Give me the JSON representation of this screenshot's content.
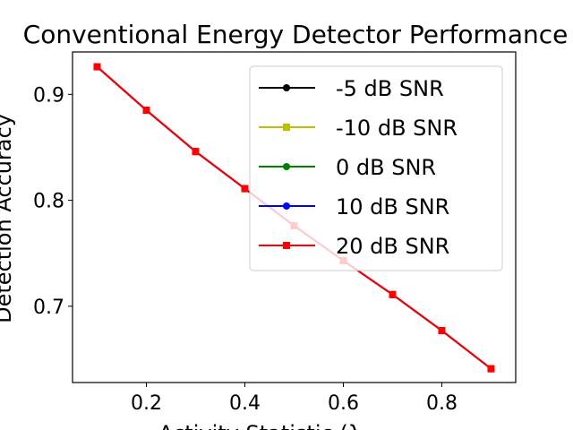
{
  "chart_data": {
    "type": "line",
    "title": "Conventional Energy Detector Performance",
    "xlabel": "Activity Statistic (λ",
    "ylabel": "Detection Accuracy",
    "xlim": [
      0.05,
      0.95
    ],
    "ylim": [
      0.628,
      0.94
    ],
    "xticks": [
      "0.2",
      "0.4",
      "0.6",
      "0.8"
    ],
    "yticks": [
      "0.7",
      "0.8",
      "0.9"
    ],
    "grid": false,
    "legend_position": "upper right",
    "x": [
      0.1,
      0.2,
      0.3,
      0.4,
      0.5,
      0.6,
      0.7,
      0.8,
      0.9
    ],
    "series": [
      {
        "name": "-5 dB SNR",
        "color": "#000000",
        "marker": "circle",
        "values": [
          0.926,
          0.885,
          0.846,
          0.811,
          0.776,
          0.743,
          0.711,
          0.677,
          0.641
        ]
      },
      {
        "name": "-10 dB SNR",
        "color": "#bfbf00",
        "marker": "square",
        "values": [
          0.926,
          0.885,
          0.846,
          0.811,
          0.776,
          0.743,
          0.711,
          0.677,
          0.641
        ]
      },
      {
        "name": "0 dB SNR",
        "color": "#008000",
        "marker": "circle",
        "values": [
          0.926,
          0.885,
          0.846,
          0.811,
          0.776,
          0.743,
          0.711,
          0.677,
          0.641
        ]
      },
      {
        "name": "10 dB SNR",
        "color": "#0000ff",
        "marker": "circle",
        "values": [
          0.926,
          0.885,
          0.846,
          0.811,
          0.776,
          0.743,
          0.711,
          0.677,
          0.641
        ]
      },
      {
        "name": "20 dB SNR",
        "color": "#ff0000",
        "marker": "square",
        "values": [
          0.926,
          0.885,
          0.846,
          0.811,
          0.776,
          0.743,
          0.711,
          0.677,
          0.641
        ]
      }
    ]
  }
}
